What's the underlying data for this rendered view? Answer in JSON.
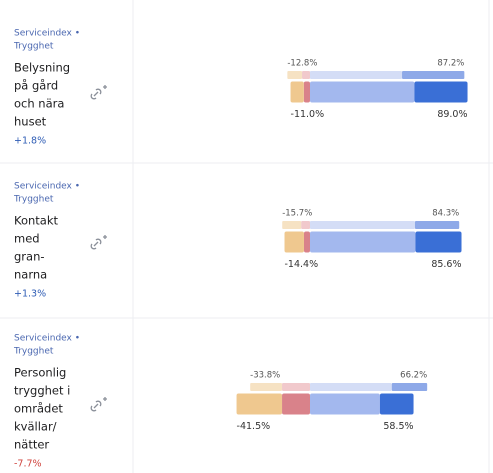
{
  "rows": [
    {
      "category": [
        "Serviceindex •",
        "Trygghet"
      ],
      "label": [
        "Belysning",
        "på gård",
        "och nära",
        "huset"
      ],
      "change": "+1.8%",
      "change_color": "#2f5db5",
      "previous": {
        "neg": -12.8,
        "neg_label": "-12.8%",
        "pos": 87.2,
        "pos_label": "87.2%",
        "segments": [
          -4.5,
          -8.3,
          52,
          35.2
        ]
      },
      "current": {
        "neg": -11.0,
        "neg_label": "-11.0%",
        "pos": 89.0,
        "pos_label": "89.0%",
        "segments": [
          -3.5,
          -7.5,
          59,
          30
        ]
      }
    },
    {
      "category": [
        "Serviceindex •",
        "Trygghet"
      ],
      "label": [
        "Kontakt",
        "med",
        "gran-",
        "narna"
      ],
      "change": "+1.3%",
      "change_color": "#2f5db5",
      "previous": {
        "neg": -15.7,
        "neg_label": "-15.7%",
        "pos": 84.3,
        "pos_label": "84.3%",
        "segments": [
          -5,
          -10.7,
          59.3,
          25
        ]
      },
      "current": {
        "neg": -14.4,
        "neg_label": "-14.4%",
        "pos": 85.6,
        "pos_label": "85.6%",
        "segments": [
          -3.4,
          -11,
          59.6,
          26
        ]
      }
    },
    {
      "category": [
        "Serviceindex •",
        "Trygghet"
      ],
      "label": [
        "Personlig",
        "trygghet i",
        "området",
        "kvällar/",
        "nätter"
      ],
      "change": "-7.7%",
      "change_color": "#d0453f",
      "previous": {
        "neg": -33.8,
        "neg_label": "-33.8%",
        "pos": 66.2,
        "pos_label": "66.2%",
        "segments": [
          -15.8,
          -18,
          46.2,
          20
        ]
      },
      "current": {
        "neg": -41.5,
        "neg_label": "-41.5%",
        "pos": 58.5,
        "pos_label": "58.5%",
        "segments": [
          -15.8,
          -25.7,
          39.5,
          19
        ]
      }
    }
  ],
  "colors": {
    "previous": [
      "#f1c9cc",
      "#f6e2c3",
      "#d4ddf6",
      "#8ea9e8"
    ],
    "current": [
      "#d9828a",
      "#efc88f",
      "#a3b8ee",
      "#3a6fd6"
    ]
  }
}
